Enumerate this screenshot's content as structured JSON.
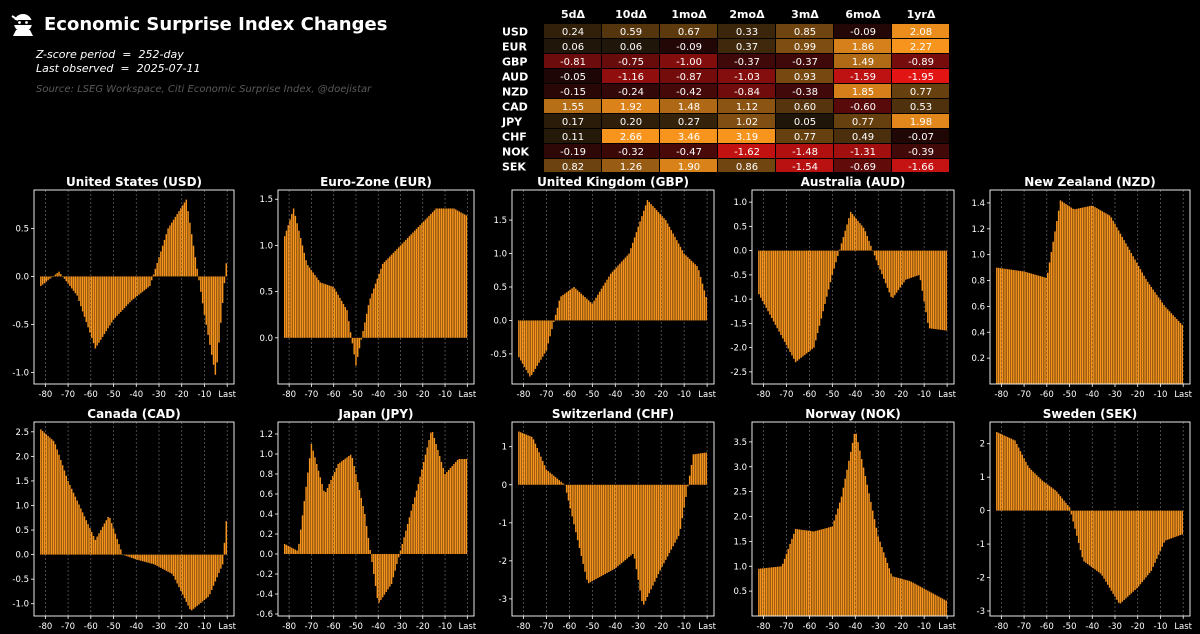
{
  "header": {
    "title": "Economic Surprise Index Changes",
    "zscore_label": "Z-score period",
    "zscore_value": "252-day",
    "observed_label": "Last observed",
    "observed_value": "2025-07-11",
    "source": "Source:  LSEG Workspace, Citi Economic Surprise Index, @doejistar",
    "logo_icon": "ninja-logo-icon"
  },
  "colors": {
    "bar": "#f7941d",
    "bar_edge": "#000000",
    "background": "#000000",
    "axis": "#ffffff",
    "grid": "#666666"
  },
  "table": {
    "columns": [
      "5dΔ",
      "10dΔ",
      "1moΔ",
      "2moΔ",
      "3mΔ",
      "6moΔ",
      "1yrΔ"
    ],
    "rows": [
      {
        "label": "USD",
        "values": [
          "0.24",
          "0.59",
          "0.67",
          "0.33",
          "0.85",
          "-0.09",
          "2.08"
        ]
      },
      {
        "label": "EUR",
        "values": [
          "0.06",
          "0.06",
          "-0.09",
          "0.37",
          "0.99",
          "1.86",
          "2.27"
        ]
      },
      {
        "label": "GBP",
        "values": [
          "-0.81",
          "-0.75",
          "-1.00",
          "-0.37",
          "-0.37",
          "1.49",
          "-0.89"
        ]
      },
      {
        "label": "AUD",
        "values": [
          "-0.05",
          "-1.16",
          "-0.87",
          "-1.03",
          "0.93",
          "-1.59",
          "-1.95"
        ]
      },
      {
        "label": "NZD",
        "values": [
          "-0.15",
          "-0.24",
          "-0.42",
          "-0.84",
          "-0.38",
          "1.85",
          "0.77"
        ]
      },
      {
        "label": "CAD",
        "values": [
          "1.55",
          "1.92",
          "1.48",
          "1.12",
          "0.60",
          "-0.60",
          "0.53"
        ]
      },
      {
        "label": "JPY",
        "values": [
          "0.17",
          "0.20",
          "0.27",
          "1.02",
          "0.05",
          "0.77",
          "1.98"
        ]
      },
      {
        "label": "CHF",
        "values": [
          "0.11",
          "2.66",
          "3.46",
          "3.19",
          "0.77",
          "0.49",
          "-0.07"
        ]
      },
      {
        "label": "NOK",
        "values": [
          "-0.19",
          "-0.32",
          "-0.47",
          "-1.62",
          "-1.48",
          "-1.31",
          "-0.39"
        ]
      },
      {
        "label": "SEK",
        "values": [
          "0.82",
          "1.26",
          "1.90",
          "0.86",
          "-1.54",
          "-0.69",
          "-1.66"
        ]
      }
    ]
  },
  "chart_data": [
    {
      "type": "bar",
      "title": "United States (USD)",
      "xticks": [
        "-80",
        "-70",
        "-60",
        "-50",
        "-40",
        "-30",
        "-20",
        "-10",
        "Last"
      ],
      "yticks": [
        "-1.0",
        "-0.5",
        "0.0",
        "0.5"
      ],
      "ylim": [
        -1.12,
        0.9
      ],
      "grid": "vertical",
      "x": [
        -82,
        -74,
        -66,
        -58,
        -50,
        -42,
        -34,
        -26,
        -18,
        -10,
        -5,
        0
      ],
      "values": [
        -0.1,
        0.05,
        -0.2,
        -0.75,
        -0.45,
        -0.25,
        -0.1,
        0.5,
        0.8,
        -0.4,
        -1.05,
        0.24
      ]
    },
    {
      "type": "bar",
      "title": "Euro-Zone (EUR)",
      "xticks": [
        "-80",
        "-70",
        "-60",
        "-50",
        "-40",
        "-30",
        "-20",
        "-10",
        "Last"
      ],
      "yticks": [
        "0.0",
        "0.5",
        "1.0",
        "1.5"
      ],
      "ylim": [
        -0.5,
        1.6
      ],
      "grid": "vertical",
      "x": [
        -82,
        -78,
        -72,
        -66,
        -60,
        -54,
        -50,
        -44,
        -38,
        -30,
        -22,
        -14,
        -6,
        0
      ],
      "values": [
        1.1,
        1.4,
        0.8,
        0.6,
        0.55,
        0.3,
        -0.3,
        0.4,
        0.8,
        1.0,
        1.2,
        1.4,
        1.4,
        1.32
      ]
    },
    {
      "type": "bar",
      "title": "United Kingdom (GBP)",
      "xticks": [
        "-80",
        "-70",
        "-60",
        "-50",
        "-40",
        "-30",
        "-20",
        "-10",
        "Last"
      ],
      "yticks": [
        "-0.5",
        "0.0",
        "0.5",
        "1.0",
        "1.5"
      ],
      "ylim": [
        -0.95,
        1.95
      ],
      "grid": "vertical",
      "x": [
        -82,
        -77,
        -70,
        -64,
        -58,
        -50,
        -42,
        -34,
        -26,
        -18,
        -10,
        -4,
        0
      ],
      "values": [
        -0.55,
        -0.85,
        -0.45,
        0.35,
        0.5,
        0.25,
        0.7,
        1.0,
        1.8,
        1.5,
        1.0,
        0.8,
        0.3
      ]
    },
    {
      "type": "bar",
      "title": "Australia (AUD)",
      "xticks": [
        "-80",
        "-70",
        "-60",
        "-50",
        "-40",
        "-30",
        "-20",
        "-10",
        "Last"
      ],
      "yticks": [
        "-2.5",
        "-2.0",
        "-1.5",
        "-1.0",
        "-0.5",
        "0.0",
        "0.5",
        "1.0"
      ],
      "ylim": [
        -2.75,
        1.25
      ],
      "grid": "vertical",
      "x": [
        -82,
        -74,
        -66,
        -58,
        -50,
        -42,
        -36,
        -30,
        -24,
        -18,
        -12,
        -8,
        0
      ],
      "values": [
        -0.9,
        -1.6,
        -2.3,
        -2.0,
        -0.5,
        0.8,
        0.45,
        -0.3,
        -1.0,
        -0.6,
        -0.5,
        -1.6,
        -1.65
      ]
    },
    {
      "type": "bar",
      "title": "New Zealand (NZD)",
      "xticks": [
        "-80",
        "-70",
        "-60",
        "-50",
        "-40",
        "-30",
        "-20",
        "-10",
        "Last"
      ],
      "yticks": [
        "0.2",
        "0.4",
        "0.6",
        "0.8",
        "1.0",
        "1.2",
        "1.4"
      ],
      "ylim": [
        0,
        1.5
      ],
      "grid": "vertical",
      "x": [
        -82,
        -70,
        -60,
        -54,
        -48,
        -40,
        -32,
        -24,
        -16,
        -8,
        0
      ],
      "values": [
        0.9,
        0.87,
        0.82,
        1.42,
        1.35,
        1.38,
        1.3,
        1.05,
        0.8,
        0.6,
        0.45
      ]
    },
    {
      "type": "bar",
      "title": "Canada (CAD)",
      "xticks": [
        "-80",
        "-70",
        "-60",
        "-50",
        "-40",
        "-30",
        "-20",
        "-10",
        "Last"
      ],
      "yticks": [
        "-1.0",
        "-0.5",
        "0.0",
        "0.5",
        "1.0",
        "1.5",
        "2.0",
        "2.5"
      ],
      "ylim": [
        -1.25,
        2.7
      ],
      "grid": "vertical",
      "x": [
        -82,
        -76,
        -70,
        -64,
        -58,
        -52,
        -46,
        -40,
        -32,
        -24,
        -16,
        -8,
        -2,
        0
      ],
      "values": [
        2.55,
        2.3,
        1.5,
        0.9,
        0.3,
        0.8,
        0.0,
        -0.1,
        -0.2,
        -0.4,
        -1.15,
        -0.85,
        -0.2,
        0.9
      ]
    },
    {
      "type": "bar",
      "title": "Japan (JPY)",
      "xticks": [
        "-80",
        "-70",
        "-60",
        "-50",
        "-40",
        "-30",
        "-20",
        "-10",
        "Last"
      ],
      "yticks": [
        "-0.6",
        "-0.4",
        "-0.2",
        "0.0",
        "0.2",
        "0.4",
        "0.6",
        "0.8",
        "1.0",
        "1.2"
      ],
      "ylim": [
        -0.62,
        1.32
      ],
      "grid": "vertical",
      "x": [
        -82,
        -76,
        -70,
        -64,
        -58,
        -52,
        -46,
        -40,
        -34,
        -28,
        -22,
        -16,
        -10,
        -4,
        0
      ],
      "values": [
        0.1,
        0.03,
        1.1,
        0.6,
        0.9,
        1.0,
        0.4,
        -0.5,
        -0.3,
        0.2,
        0.7,
        1.25,
        0.8,
        0.95,
        0.95
      ]
    },
    {
      "type": "bar",
      "title": "Switzerland (CHF)",
      "xticks": [
        "-80",
        "-70",
        "-60",
        "-50",
        "-40",
        "-30",
        "-20",
        "-10",
        "Last"
      ],
      "yticks": [
        "-3",
        "-2",
        "-1",
        "0",
        "1"
      ],
      "ylim": [
        -3.45,
        1.65
      ],
      "grid": "vertical",
      "x": [
        -82,
        -76,
        -70,
        -62,
        -52,
        -46,
        -40,
        -32,
        -28,
        -20,
        -12,
        -6,
        0
      ],
      "values": [
        1.4,
        1.25,
        0.4,
        0.0,
        -2.6,
        -2.4,
        -2.2,
        -1.8,
        -3.2,
        -2.2,
        -1.3,
        0.8,
        0.85
      ]
    },
    {
      "type": "bar",
      "title": "Norway (NOK)",
      "xticks": [
        "-80",
        "-70",
        "-60",
        "-50",
        "-40",
        "-30",
        "-20",
        "-10",
        "Last"
      ],
      "yticks": [
        "0.5",
        "1.0",
        "1.5",
        "2.0",
        "2.5",
        "3.0",
        "3.5"
      ],
      "ylim": [
        0,
        3.9
      ],
      "grid": "vertical",
      "x": [
        -82,
        -72,
        -66,
        -58,
        -50,
        -46,
        -40,
        -36,
        -30,
        -24,
        -16,
        -8,
        0
      ],
      "values": [
        0.95,
        1.0,
        1.75,
        1.7,
        1.8,
        2.4,
        3.75,
        2.9,
        1.6,
        0.8,
        0.7,
        0.5,
        0.3
      ]
    },
    {
      "type": "bar",
      "title": "Sweden (SEK)",
      "xticks": [
        "-80",
        "-70",
        "-60",
        "-50",
        "-40",
        "-30",
        "-20",
        "-10",
        "Last"
      ],
      "yticks": [
        "-3",
        "-2",
        "-1",
        "0",
        "1",
        "2"
      ],
      "ylim": [
        -3.15,
        2.65
      ],
      "grid": "vertical",
      "x": [
        -82,
        -74,
        -68,
        -62,
        -56,
        -50,
        -44,
        -36,
        -28,
        -20,
        -14,
        -8,
        0
      ],
      "values": [
        2.35,
        2.1,
        1.3,
        0.9,
        0.6,
        0.1,
        -1.5,
        -1.9,
        -2.8,
        -2.3,
        -1.8,
        -0.9,
        -0.7
      ]
    }
  ]
}
